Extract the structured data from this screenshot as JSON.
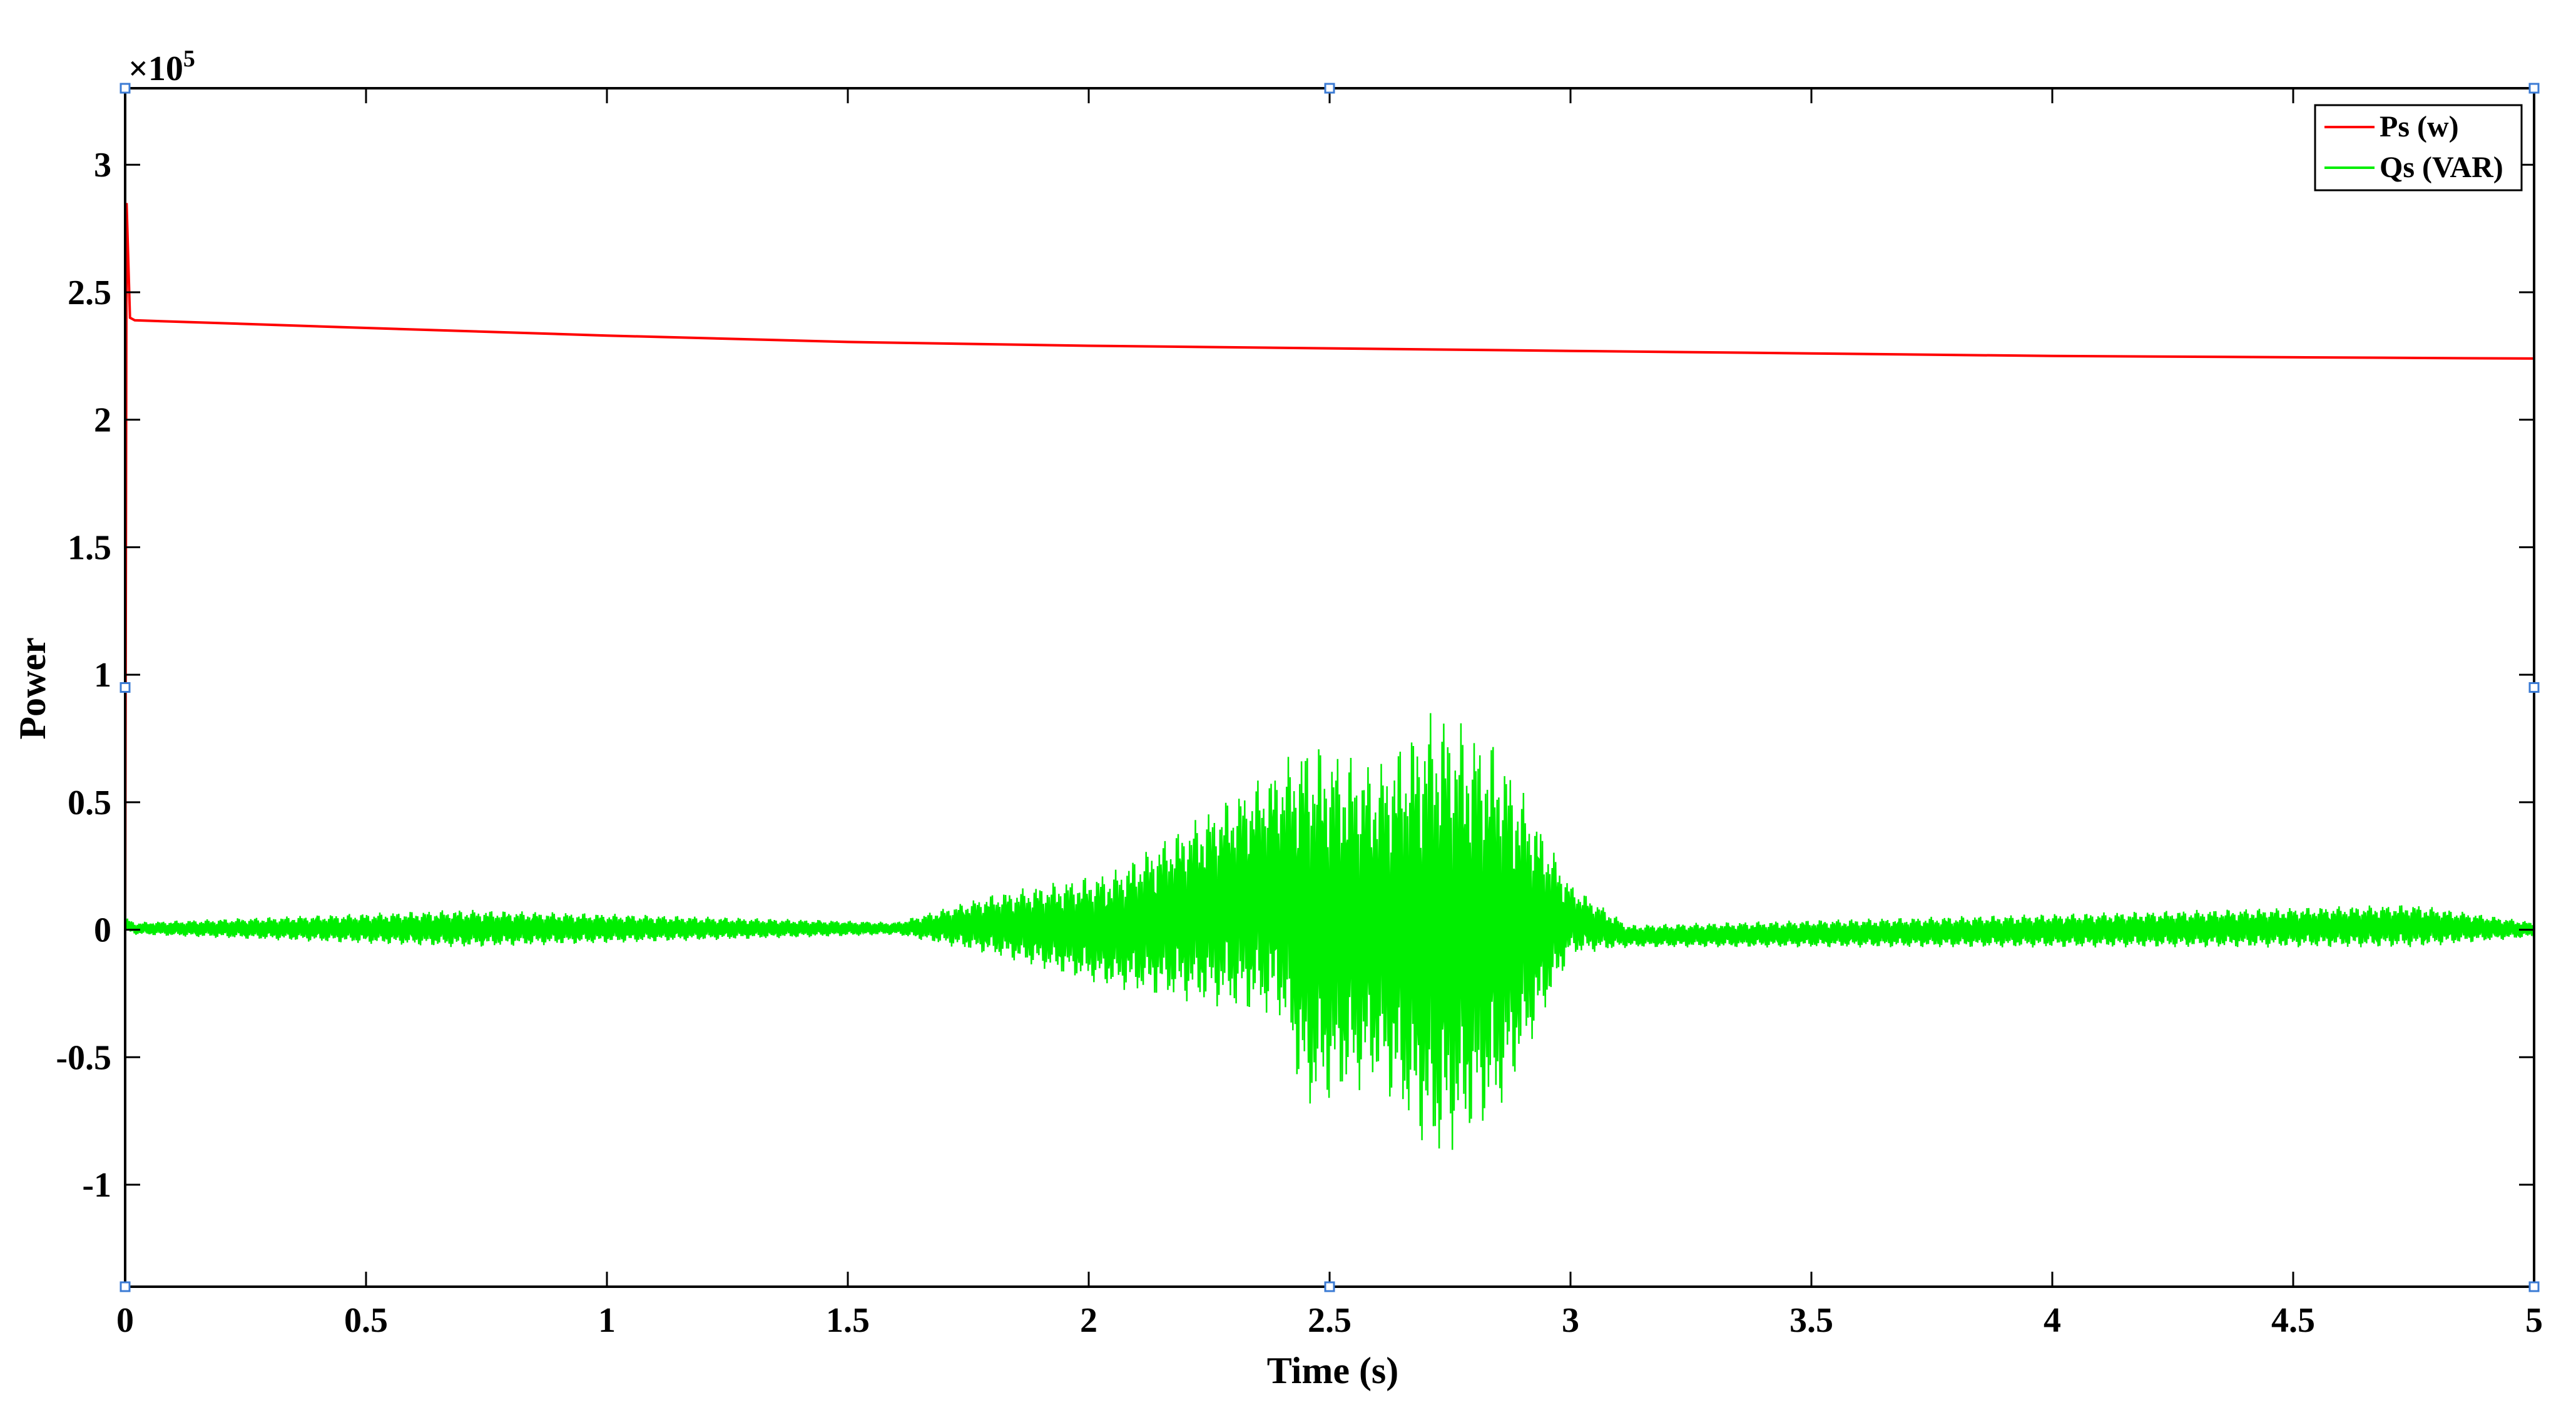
{
  "chart_data": {
    "type": "line",
    "title": "",
    "xlabel": "Time (s)",
    "ylabel": "Power",
    "y_exponent_label": "×10",
    "y_exponent_power": "5",
    "xlim": [
      0,
      5
    ],
    "ylim": [
      -1.4,
      3.3
    ],
    "x_ticks": [
      0,
      0.5,
      1,
      1.5,
      2,
      2.5,
      3,
      3.5,
      4,
      4.5,
      5
    ],
    "x_tick_labels": [
      "0",
      "0.5",
      "1",
      "1.5",
      "2",
      "2.5",
      "3",
      "3.5",
      "4",
      "4.5",
      "5"
    ],
    "y_ticks": [
      -1,
      -0.5,
      0,
      0.5,
      1,
      1.5,
      2,
      2.5,
      3
    ],
    "y_tick_labels": [
      "-1",
      "-0.5",
      "0",
      "0.5",
      "1",
      "1.5",
      "2",
      "2.5",
      "3"
    ],
    "grid": false,
    "legend_position": "top-right",
    "series": [
      {
        "name": "Ps (w)",
        "color": "#ff0000",
        "x": [
          0,
          0.003,
          0.01,
          0.02,
          0.5,
          1,
          1.5,
          2,
          2.5,
          3,
          3.5,
          4,
          4.5,
          5
        ],
        "y": [
          0,
          2.85,
          2.4,
          2.39,
          2.36,
          2.33,
          2.305,
          2.29,
          2.28,
          2.27,
          2.26,
          2.25,
          2.245,
          2.24
        ]
      },
      {
        "name": "Qs (VAR)",
        "color": "#00ee00",
        "description_points": {
          "x": [
            0,
            0.02,
            0.7,
            1.6,
            1.8,
            2.05,
            2.4,
            2.45,
            2.6,
            2.72,
            2.85,
            3.0,
            3.12,
            4.75,
            5
          ],
          "y_max": [
            0.05,
            0.03,
            0.08,
            0.03,
            0.14,
            0.23,
            0.65,
            0.75,
            0.65,
            0.88,
            0.73,
            0.18,
            0.02,
            0.1,
            0.03
          ],
          "y_min": [
            -0.01,
            -0.02,
            -0.07,
            -0.02,
            -0.1,
            -0.23,
            -0.35,
            -0.72,
            -0.6,
            -0.92,
            -0.73,
            -0.1,
            -0.07,
            -0.07,
            -0.03
          ]
        }
      }
    ]
  }
}
